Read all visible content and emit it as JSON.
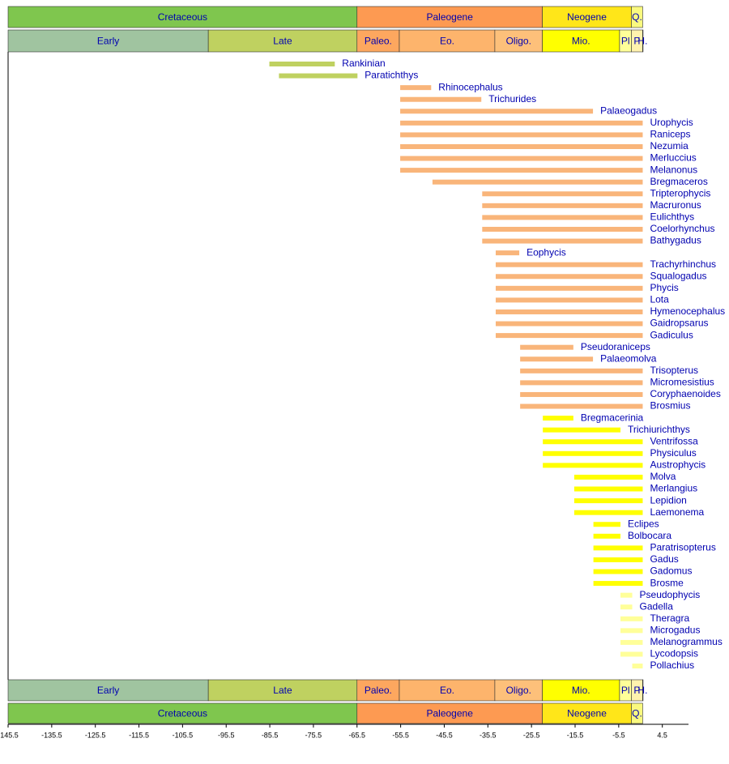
{
  "chart_data": {
    "type": "range",
    "xlim": [
      -145.5,
      10.5
    ],
    "xticks": [
      -145.5,
      -135.5,
      -125.5,
      -115.5,
      -105.5,
      -95.5,
      -85.5,
      -75.5,
      -65.5,
      -55.5,
      -45.5,
      -35.5,
      -25.5,
      -15.5,
      -5.5,
      4.5
    ],
    "periods": [
      {
        "name": "Cretaceous",
        "start": -145.5,
        "end": -65.5,
        "color": "#7fc64e"
      },
      {
        "name": "Paleogene",
        "start": -65.5,
        "end": -23,
        "color": "#fd9a52"
      },
      {
        "name": "Neogene",
        "start": -23,
        "end": -2.6,
        "color": "#ffe619"
      },
      {
        "name": "Q.",
        "start": -2.6,
        "end": 0,
        "color": "#f9f97f"
      }
    ],
    "epochs": [
      {
        "name": "Early",
        "start": -145.5,
        "end": -99.6,
        "color": "#a0c4a0"
      },
      {
        "name": "Late",
        "start": -99.6,
        "end": -65.5,
        "color": "#bfd160"
      },
      {
        "name": "Paleo.",
        "start": -65.5,
        "end": -55.8,
        "color": "#fda75f"
      },
      {
        "name": "Eo.",
        "start": -55.8,
        "end": -33.9,
        "color": "#fdb46c"
      },
      {
        "name": "Oligo.",
        "start": -33.9,
        "end": -23,
        "color": "#fdc07a"
      },
      {
        "name": "Mio.",
        "start": -23,
        "end": -5.3,
        "color": "#ffff00"
      },
      {
        "name": "Pl",
        "start": -5.3,
        "end": -2.6,
        "color": "#ffff99"
      },
      {
        "name": "P",
        "start": -2.6,
        "end": -0.01,
        "color": "#fff2ae"
      },
      {
        "name": "H.",
        "start": -0.01,
        "end": 0,
        "color": "#fef2e0"
      }
    ],
    "taxa": [
      {
        "name": "Rankinian",
        "start": -85.6,
        "end": -70.6,
        "color": "#bfd160"
      },
      {
        "name": "Paratichthys",
        "start": -83.4,
        "end": -65.4,
        "color": "#bfd160"
      },
      {
        "name": "Rhinocephalus",
        "start": -55.6,
        "end": -48.5,
        "color": "#f9b57a"
      },
      {
        "name": "Trichurides",
        "start": -55.6,
        "end": -37.0,
        "color": "#f9b57a"
      },
      {
        "name": "Palaeogadus",
        "start": -55.6,
        "end": -11.4,
        "color": "#f9b57a"
      },
      {
        "name": "Urophycis",
        "start": -55.6,
        "end": 0,
        "color": "#f9b57a"
      },
      {
        "name": "Raniceps",
        "start": -55.6,
        "end": 0,
        "color": "#f9b57a"
      },
      {
        "name": "Nezumia",
        "start": -55.6,
        "end": 0,
        "color": "#f9b57a"
      },
      {
        "name": "Merluccius",
        "start": -55.6,
        "end": 0,
        "color": "#f9b57a"
      },
      {
        "name": "Melanonus",
        "start": -55.6,
        "end": 0,
        "color": "#f9b57a"
      },
      {
        "name": "Bregmaceros",
        "start": -48.2,
        "end": 0,
        "color": "#f9b57a"
      },
      {
        "name": "Tripterophycis",
        "start": -36.8,
        "end": 0,
        "color": "#f9b57a"
      },
      {
        "name": "Macruronus",
        "start": -36.8,
        "end": 0,
        "color": "#f9b57a"
      },
      {
        "name": "Eulichthys",
        "start": -36.8,
        "end": 0,
        "color": "#f9b57a"
      },
      {
        "name": "Coelorhynchus",
        "start": -36.8,
        "end": 0,
        "color": "#f9b57a"
      },
      {
        "name": "Bathygadus",
        "start": -36.8,
        "end": 0,
        "color": "#f9b57a"
      },
      {
        "name": "Eophycis",
        "start": -33.7,
        "end": -28.3,
        "color": "#f9b57a"
      },
      {
        "name": "Trachyrhinchus",
        "start": -33.7,
        "end": 0,
        "color": "#f9b57a"
      },
      {
        "name": "Squalogadus",
        "start": -33.7,
        "end": 0,
        "color": "#f9b57a"
      },
      {
        "name": "Phycis",
        "start": -33.7,
        "end": 0,
        "color": "#f9b57a"
      },
      {
        "name": "Lota",
        "start": -33.7,
        "end": 0,
        "color": "#f9b57a"
      },
      {
        "name": "Hymenocephalus",
        "start": -33.7,
        "end": 0,
        "color": "#f9b57a"
      },
      {
        "name": "Gaidropsarus",
        "start": -33.7,
        "end": 0,
        "color": "#f9b57a"
      },
      {
        "name": "Gadiculus",
        "start": -33.7,
        "end": 0,
        "color": "#f9b57a"
      },
      {
        "name": "Pseudoraniceps",
        "start": -28.1,
        "end": -15.9,
        "color": "#f9b57a"
      },
      {
        "name": "Palaeomolva",
        "start": -28.1,
        "end": -11.4,
        "color": "#f9b57a"
      },
      {
        "name": "Trisopterus",
        "start": -28.1,
        "end": 0,
        "color": "#f9b57a"
      },
      {
        "name": "Micromesistius",
        "start": -28.1,
        "end": 0,
        "color": "#f9b57a"
      },
      {
        "name": "Coryphaenoides",
        "start": -28.1,
        "end": 0,
        "color": "#f9b57a"
      },
      {
        "name": "Brosmius",
        "start": -28.1,
        "end": 0,
        "color": "#f9b57a"
      },
      {
        "name": "Bregmacerinia",
        "start": -22.9,
        "end": -15.9,
        "color": "#ffff00"
      },
      {
        "name": "Trichiurichthys",
        "start": -22.9,
        "end": -5.1,
        "color": "#ffff00"
      },
      {
        "name": "Ventrifossa",
        "start": -22.9,
        "end": 0,
        "color": "#ffff00"
      },
      {
        "name": "Physiculus",
        "start": -22.9,
        "end": 0,
        "color": "#ffff00"
      },
      {
        "name": "Austrophycis",
        "start": -22.9,
        "end": 0,
        "color": "#ffff00"
      },
      {
        "name": "Molva",
        "start": -15.7,
        "end": 0,
        "color": "#ffff00"
      },
      {
        "name": "Merlangius",
        "start": -15.7,
        "end": 0,
        "color": "#ffff00"
      },
      {
        "name": "Lepidion",
        "start": -15.7,
        "end": 0,
        "color": "#ffff00"
      },
      {
        "name": "Laemonema",
        "start": -15.7,
        "end": 0,
        "color": "#ffff00"
      },
      {
        "name": "Eclipes",
        "start": -11.3,
        "end": -5.1,
        "color": "#ffff00"
      },
      {
        "name": "Bolbocara",
        "start": -11.3,
        "end": -5.1,
        "color": "#ffff00"
      },
      {
        "name": "Paratrisopterus",
        "start": -11.3,
        "end": 0,
        "color": "#ffff00"
      },
      {
        "name": "Gadus",
        "start": -11.3,
        "end": 0,
        "color": "#ffff00"
      },
      {
        "name": "Gadomus",
        "start": -11.3,
        "end": 0,
        "color": "#ffff00"
      },
      {
        "name": "Brosme",
        "start": -11.3,
        "end": 0,
        "color": "#ffff00"
      },
      {
        "name": "Pseudophycis",
        "start": -5.1,
        "end": -2.4,
        "color": "#ffff99"
      },
      {
        "name": "Gadella",
        "start": -5.1,
        "end": -2.4,
        "color": "#ffff99"
      },
      {
        "name": "Theragra",
        "start": -5.1,
        "end": 0,
        "color": "#ffff99"
      },
      {
        "name": "Microgadus",
        "start": -5.1,
        "end": 0,
        "color": "#ffff99"
      },
      {
        "name": "Melanogrammus",
        "start": -5.1,
        "end": 0,
        "color": "#ffff99"
      },
      {
        "name": "Lycodopsis",
        "start": -5.1,
        "end": 0,
        "color": "#ffff99"
      },
      {
        "name": "Pollachius",
        "start": -2.4,
        "end": 0,
        "color": "#ffff99"
      }
    ]
  }
}
